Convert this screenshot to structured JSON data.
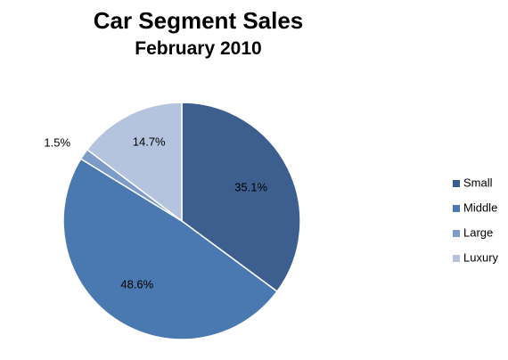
{
  "chart_data": {
    "type": "pie",
    "title": "Car Segment Sales",
    "subtitle": "February 2010",
    "categories": [
      "Small",
      "Middle",
      "Large",
      "Luxury"
    ],
    "values": [
      35.1,
      48.6,
      1.5,
      14.7
    ],
    "labels": [
      "35.1%",
      "48.6%",
      "1.5%",
      "14.7%"
    ],
    "colors": [
      "#3d5f8f",
      "#4a78b1",
      "#7c9bc8",
      "#b4c3de"
    ],
    "legend": "right"
  }
}
